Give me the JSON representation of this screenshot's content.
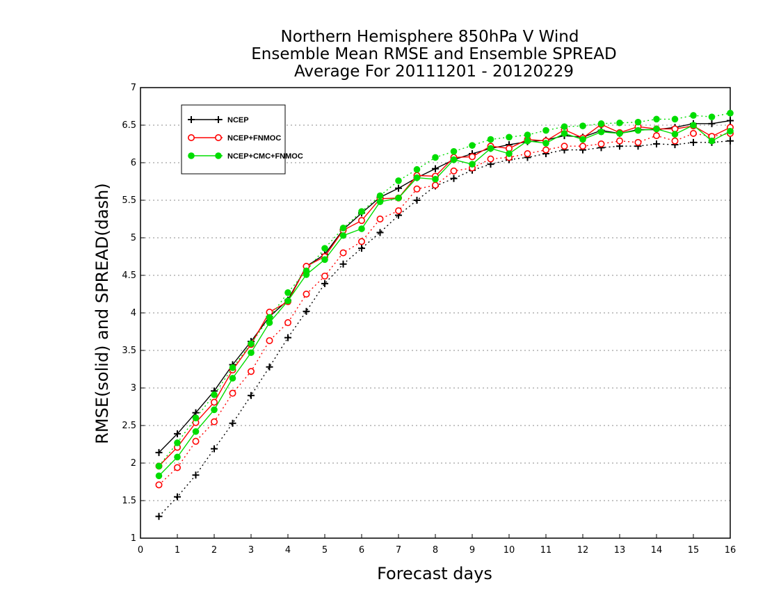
{
  "chart_data": {
    "type": "line",
    "title": [
      "Northern Hemisphere 850hPa V Wind",
      "Ensemble Mean RMSE and Ensemble SPREAD",
      "Average For 20111201 - 20120229"
    ],
    "xlabel": "Forecast days",
    "ylabel": "RMSE(solid) and SPREAD(dash)",
    "xlim": [
      0,
      16
    ],
    "ylim": [
      1,
      7
    ],
    "xticks": [
      "0",
      "1",
      "2",
      "3",
      "4",
      "5",
      "6",
      "7",
      "8",
      "9",
      "10",
      "11",
      "12",
      "13",
      "14",
      "15",
      "16"
    ],
    "yticks": [
      "1",
      "1.5",
      "2",
      "2.5",
      "3",
      "3.5",
      "4",
      "4.5",
      "5",
      "5.5",
      "6",
      "6.5",
      "7"
    ],
    "grid": "horizontal dotted",
    "legend_position": "top-left",
    "x": [
      0.5,
      1,
      1.5,
      2,
      2.5,
      3,
      3.5,
      4,
      4.5,
      5,
      5.5,
      6,
      6.5,
      7,
      7.5,
      8,
      8.5,
      9,
      9.5,
      10,
      10.5,
      11,
      11.5,
      12,
      12.5,
      13,
      13.5,
      14,
      14.5,
      15,
      15.5,
      16
    ],
    "series": [
      {
        "name": "NCEP",
        "color": "#000000",
        "marker": "plus",
        "rmse": [
          2.14,
          2.39,
          2.67,
          2.96,
          3.31,
          3.62,
          3.95,
          4.17,
          4.62,
          4.78,
          5.11,
          5.33,
          5.54,
          5.66,
          5.8,
          5.92,
          6.04,
          6.12,
          6.19,
          6.24,
          6.28,
          6.3,
          6.36,
          6.34,
          6.43,
          6.39,
          6.44,
          6.44,
          6.47,
          6.52,
          6.52,
          6.56
        ],
        "spread": [
          1.29,
          1.55,
          1.84,
          2.19,
          2.53,
          2.9,
          3.28,
          3.67,
          4.02,
          4.39,
          4.65,
          4.86,
          5.07,
          5.3,
          5.5,
          5.69,
          5.79,
          5.9,
          5.98,
          6.04,
          6.07,
          6.12,
          6.17,
          6.17,
          6.2,
          6.22,
          6.22,
          6.25,
          6.24,
          6.27,
          6.27,
          6.29
        ]
      },
      {
        "name": "NCEP+FNMOC",
        "color": "#ff0000",
        "marker": "open-circle",
        "rmse": [
          1.96,
          2.21,
          2.54,
          2.81,
          3.24,
          3.58,
          4.01,
          4.15,
          4.62,
          4.75,
          5.1,
          5.23,
          5.52,
          5.53,
          5.83,
          5.82,
          6.07,
          6.08,
          6.22,
          6.19,
          6.31,
          6.29,
          6.44,
          6.33,
          6.51,
          6.4,
          6.48,
          6.45,
          6.45,
          6.49,
          6.35,
          6.47
        ],
        "spread": [
          1.71,
          1.94,
          2.29,
          2.55,
          2.93,
          3.22,
          3.63,
          3.87,
          4.25,
          4.49,
          4.8,
          4.95,
          5.25,
          5.36,
          5.65,
          5.7,
          5.89,
          5.93,
          6.05,
          6.07,
          6.12,
          6.17,
          6.22,
          6.22,
          6.25,
          6.29,
          6.27,
          6.36,
          6.29,
          6.39,
          6.35,
          6.39
        ]
      },
      {
        "name": "NCEP+CMC+FNMOC",
        "color": "#00dd00",
        "marker": "filled-circle",
        "rmse": [
          1.83,
          2.08,
          2.42,
          2.71,
          3.13,
          3.47,
          3.87,
          4.16,
          4.51,
          4.71,
          5.03,
          5.12,
          5.48,
          5.53,
          5.8,
          5.78,
          6.04,
          5.98,
          6.19,
          6.12,
          6.29,
          6.26,
          6.39,
          6.31,
          6.41,
          6.39,
          6.43,
          6.45,
          6.38,
          6.5,
          6.29,
          6.42
        ],
        "spread": [
          1.96,
          2.27,
          2.6,
          2.91,
          3.27,
          3.59,
          3.94,
          4.27,
          4.56,
          4.86,
          5.13,
          5.35,
          5.56,
          5.76,
          5.91,
          6.07,
          6.15,
          6.23,
          6.31,
          6.34,
          6.37,
          6.43,
          6.48,
          6.49,
          6.52,
          6.53,
          6.54,
          6.58,
          6.58,
          6.63,
          6.61,
          6.66
        ]
      }
    ]
  }
}
